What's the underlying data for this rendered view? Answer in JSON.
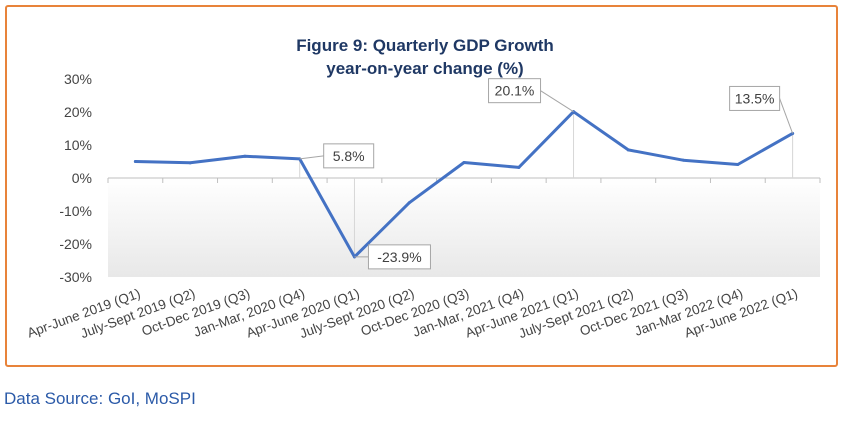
{
  "chart_data": {
    "type": "line",
    "title": "Figure 9: Quarterly GDP Growth",
    "subtitle": "year-on-year change (%)",
    "categories": [
      "Apr-June 2019 (Q1)",
      "July-Sept 2019 (Q2)",
      "Oct-Dec 2019 (Q3)",
      "Jan-Mar, 2020 (Q4)",
      "Apr-June 2020 (Q1)",
      "July-Sept 2020 (Q2)",
      "Oct-Dec 2020 (Q3)",
      "Jan-Mar, 2021 (Q4)",
      "Apr-June 2021 (Q1)",
      "July-Sept 2021 (Q2)",
      "Oct-Dec 2021 (Q3)",
      "Jan-Mar 2022 (Q4)",
      "Apr-June 2022 (Q1)"
    ],
    "series": [
      {
        "values": [
          5.0,
          4.6,
          6.6,
          5.8,
          -23.9,
          -7.5,
          4.7,
          3.2,
          20.1,
          8.5,
          5.4,
          4.1,
          13.5
        ]
      }
    ],
    "ylim": [
      -30,
      30
    ],
    "yticks": [
      -30,
      -20,
      -10,
      0,
      10,
      20,
      30
    ],
    "yticklabels": [
      "-30%",
      "-20%",
      "-10%",
      "0%",
      "10%",
      "20%",
      "30%"
    ],
    "grid": false,
    "annotations": [
      {
        "index": 3,
        "label": "5.8%"
      },
      {
        "index": 4,
        "label": "-23.9%"
      },
      {
        "index": 8,
        "label": "20.1%"
      },
      {
        "index": 12,
        "label": "13.5%"
      }
    ],
    "colors": {
      "line": "#4472c4",
      "title": "#1f3864",
      "negative_band": "#efefef",
      "border": "#e8833a"
    }
  },
  "source": "Data Source: GoI, MoSPI"
}
